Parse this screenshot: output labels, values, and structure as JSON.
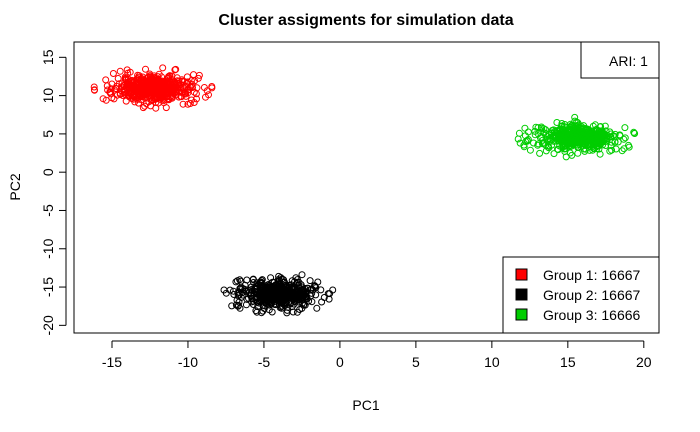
{
  "chart_data": {
    "type": "scatter",
    "title": "Cluster assigments for simulation data",
    "xlabel": "PC1",
    "ylabel": "PC2",
    "xlim": [
      -17.5,
      21
    ],
    "ylim": [
      -21,
      17
    ],
    "xticks": [
      -15,
      -10,
      -5,
      0,
      5,
      10,
      15,
      20
    ],
    "yticks": [
      -20,
      -15,
      -10,
      -5,
      0,
      5,
      10,
      15
    ],
    "grid": false,
    "marker": "open-circle",
    "annotation": "ARI: 1",
    "legend_position": "bottom-right",
    "series": [
      {
        "name": "Group 1: 16667",
        "color": "#ff0000",
        "center": [
          -12.3,
          11.0
        ],
        "spread": [
          3.8,
          2.6
        ]
      },
      {
        "name": "Group 2: 16667",
        "color": "#000000",
        "center": [
          -4.1,
          -15.8
        ],
        "spread": [
          3.8,
          2.6
        ]
      },
      {
        "name": "Group 3: 16666",
        "color": "#00cd00",
        "center": [
          15.6,
          4.5
        ],
        "spread": [
          3.8,
          2.6
        ]
      }
    ]
  }
}
